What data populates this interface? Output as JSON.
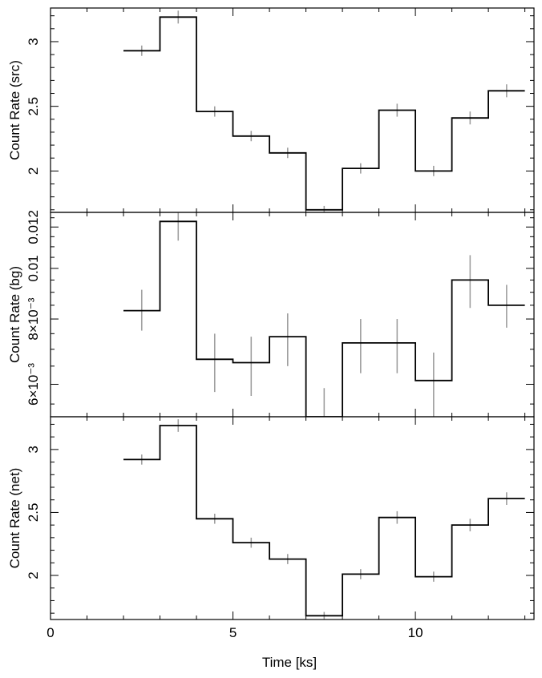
{
  "chart_data": [
    {
      "type": "line",
      "step": true,
      "xlabel": "",
      "ylabel": "Count Rate (src)",
      "xlim": [
        0,
        13.25
      ],
      "ylim": [
        1.68,
        3.26
      ],
      "yticks": [
        {
          "value": 2,
          "label": "2"
        },
        {
          "value": 2.5,
          "label": "2.5"
        },
        {
          "value": 3,
          "label": "3"
        }
      ],
      "y_minor_step": 0.1,
      "x_edges": [
        2,
        3,
        4,
        5,
        6,
        7,
        8,
        9,
        10,
        11,
        12,
        13
      ],
      "x": [
        2.5,
        3.5,
        4.5,
        5.5,
        6.5,
        7.5,
        8.5,
        9.5,
        10.5,
        11.5,
        12.5
      ],
      "values": [
        2.93,
        3.19,
        2.46,
        2.27,
        2.14,
        1.7,
        2.02,
        2.47,
        2.0,
        2.41,
        2.62
      ],
      "errors": [
        0.04,
        0.05,
        0.04,
        0.04,
        0.04,
        0.03,
        0.04,
        0.05,
        0.04,
        0.05,
        0.05
      ]
    },
    {
      "type": "line",
      "step": true,
      "xlabel": "",
      "ylabel": "Count Rate (bg)",
      "scale": "log",
      "xlim": [
        0,
        13.25
      ],
      "ylim": [
        0.0052,
        0.0128
      ],
      "yticks": [
        {
          "value": 0.006,
          "label": "6×10⁻³"
        },
        {
          "value": 0.008,
          "label": "8×10⁻³"
        },
        {
          "value": 0.01,
          "label": "0.01"
        },
        {
          "value": 0.012,
          "label": "0.012"
        }
      ],
      "y_minor": [
        0.0055,
        0.0065,
        0.007,
        0.0075,
        0.0085,
        0.009,
        0.0095,
        0.0105,
        0.011,
        0.0115,
        0.0125
      ],
      "x_edges": [
        2,
        3,
        4,
        5,
        6,
        7,
        8,
        9,
        10,
        11,
        12,
        13
      ],
      "x": [
        2.5,
        3.5,
        4.5,
        5.5,
        6.5,
        7.5,
        8.5,
        9.5,
        10.5,
        11.5,
        12.5
      ],
      "values": [
        0.0083,
        0.0123,
        0.0067,
        0.0066,
        0.0074,
        0.0052,
        0.0072,
        0.0072,
        0.0061,
        0.0095,
        0.0085
      ],
      "err_low": [
        0.0076,
        0.0113,
        0.0058,
        0.0057,
        0.0065,
        0.0049,
        0.0063,
        0.0063,
        0.0052,
        0.0084,
        0.0077
      ],
      "err_high": [
        0.0091,
        0.0133,
        0.0075,
        0.0074,
        0.0082,
        0.0059,
        0.008,
        0.008,
        0.0069,
        0.0106,
        0.0093
      ]
    },
    {
      "type": "line",
      "step": true,
      "xlabel": "Time [ks]",
      "ylabel": "Count Rate (net)",
      "xlim": [
        0,
        13.25
      ],
      "ylim": [
        1.65,
        3.26
      ],
      "yticks": [
        {
          "value": 2,
          "label": "2"
        },
        {
          "value": 2.5,
          "label": "2.5"
        },
        {
          "value": 3,
          "label": "3"
        }
      ],
      "y_minor_step": 0.1,
      "xticks": [
        {
          "value": 0,
          "label": "0"
        },
        {
          "value": 5,
          "label": "5"
        },
        {
          "value": 10,
          "label": "10"
        }
      ],
      "x_edges": [
        2,
        3,
        4,
        5,
        6,
        7,
        8,
        9,
        10,
        11,
        12,
        13
      ],
      "x": [
        2.5,
        3.5,
        4.5,
        5.5,
        6.5,
        7.5,
        8.5,
        9.5,
        10.5,
        11.5,
        12.5
      ],
      "values": [
        2.92,
        3.19,
        2.45,
        2.26,
        2.13,
        1.68,
        2.01,
        2.46,
        1.99,
        2.4,
        2.61
      ],
      "errors": [
        0.04,
        0.05,
        0.04,
        0.04,
        0.04,
        0.03,
        0.04,
        0.05,
        0.04,
        0.05,
        0.05
      ]
    }
  ],
  "colors": {
    "step_line": "#000000",
    "error_bar": "#a0a0a0",
    "axes": "#000000",
    "background": "#ffffff"
  }
}
